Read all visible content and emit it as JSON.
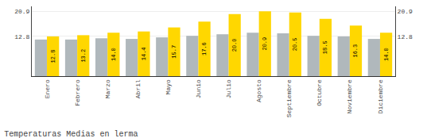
{
  "chart_data": {
    "type": "bar",
    "title": "Temperaturas Medias en lerma",
    "categories": [
      "Enero",
      "Febrero",
      "Marzo",
      "Abril",
      "Mayo",
      "Junio",
      "Julio",
      "Agosto",
      "Septiembre",
      "Octubre",
      "Noviembre",
      "Diciembre"
    ],
    "series": [
      {
        "color": "#B0B8BC",
        "values": [
          11.8,
          11.8,
          12.2,
          12.0,
          12.5,
          13.0,
          13.5,
          14.0,
          13.8,
          13.0,
          12.8,
          12.0
        ]
      },
      {
        "color": "#FFD700",
        "values": [
          12.8,
          13.2,
          14.0,
          14.4,
          15.7,
          17.6,
          20.0,
          20.9,
          20.5,
          18.5,
          16.3,
          14.0
        ],
        "data_labels": true,
        "value_labels": [
          "12.8",
          "13.2",
          "14.0",
          "14.4",
          "15.7",
          "17.6",
          "20.0",
          "20.9",
          "20.5",
          "18.5",
          "16.3",
          "14.0"
        ]
      }
    ],
    "ylim": [
      0,
      22.5
    ],
    "yticks": [
      12.8,
      20.9
    ],
    "y2lim": [
      0,
      22.5
    ],
    "y2ticks": [
      12.8,
      20.9
    ],
    "grid": true
  }
}
